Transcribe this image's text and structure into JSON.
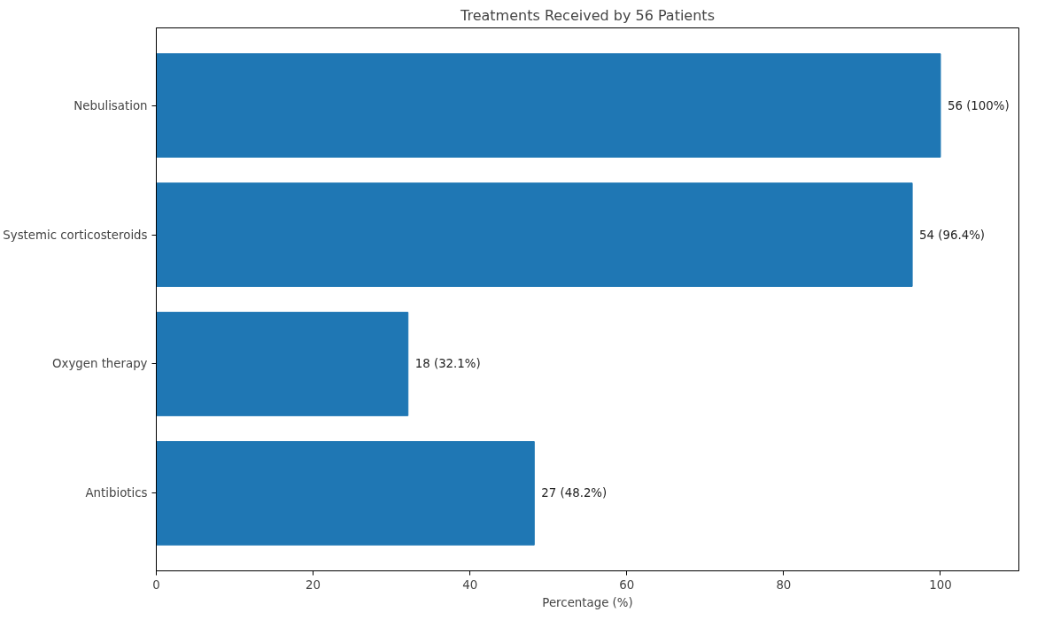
{
  "chart_data": {
    "type": "bar",
    "orientation": "horizontal",
    "title": "Treatments Received by 56 Patients",
    "xlabel": "Percentage (%)",
    "categories": [
      "Nebulisation",
      "Systemic corticosteroids",
      "Oxygen therapy",
      "Antibiotics"
    ],
    "values": [
      100,
      96.4,
      32.1,
      48.2
    ],
    "value_labels": [
      "56 (100%)",
      "54 (96.4%)",
      "18 (32.1%)",
      "27 (48.2%)"
    ],
    "color": "#1f77b4",
    "xlim": [
      0,
      110
    ],
    "xticks": [
      0,
      20,
      40,
      60,
      80,
      100
    ],
    "grid": false
  }
}
